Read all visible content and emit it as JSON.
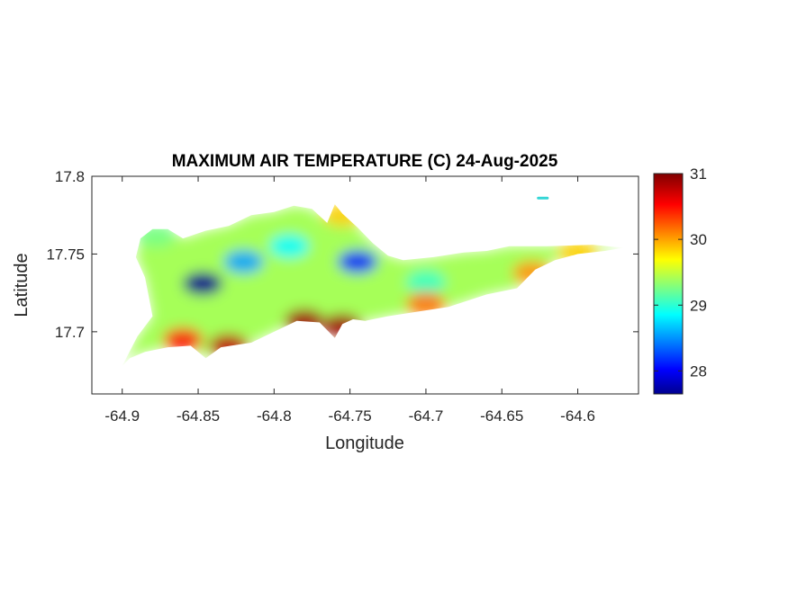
{
  "title": "MAXIMUM AIR TEMPERATURE (C) 24-Aug-2025",
  "xlabel": "Longitude",
  "ylabel": "Latitude",
  "x_ticks": [
    "-64.9",
    "-64.85",
    "-64.8",
    "-64.75",
    "-64.7",
    "-64.65",
    "-64.6"
  ],
  "y_ticks": [
    "17.8",
    "17.75",
    "17.7"
  ],
  "colorbar_ticks": [
    "31",
    "30",
    "29",
    "28"
  ],
  "chart_data": {
    "type": "heatmap",
    "title": "MAXIMUM AIR TEMPERATURE (C) 24-Aug-2025",
    "xlabel": "Longitude",
    "ylabel": "Latitude",
    "xlim": [
      -64.92,
      -64.56
    ],
    "ylim": [
      17.66,
      17.8
    ],
    "x_tick_values": [
      -64.9,
      -64.85,
      -64.8,
      -64.75,
      -64.7,
      -64.65,
      -64.6
    ],
    "y_tick_values": [
      17.8,
      17.75,
      17.7
    ],
    "colorbar": {
      "colormap": "jet",
      "range": [
        27.65,
        31
      ],
      "ticks": [
        28,
        29,
        30,
        31
      ]
    },
    "island_outline": [
      [
        -64.9,
        17.678
      ],
      [
        -64.895,
        17.683
      ],
      [
        -64.885,
        17.687
      ],
      [
        -64.87,
        17.69
      ],
      [
        -64.855,
        17.691
      ],
      [
        -64.845,
        17.683
      ],
      [
        -64.835,
        17.69
      ],
      [
        -64.815,
        17.693
      ],
      [
        -64.8,
        17.7
      ],
      [
        -64.785,
        17.707
      ],
      [
        -64.77,
        17.706
      ],
      [
        -64.76,
        17.696
      ],
      [
        -64.755,
        17.705
      ],
      [
        -64.748,
        17.708
      ],
      [
        -64.74,
        17.707
      ],
      [
        -64.725,
        17.71
      ],
      [
        -64.705,
        17.713
      ],
      [
        -64.685,
        17.716
      ],
      [
        -64.66,
        17.724
      ],
      [
        -64.64,
        17.728
      ],
      [
        -64.628,
        17.74
      ],
      [
        -64.615,
        17.746
      ],
      [
        -64.6,
        17.75
      ],
      [
        -64.582,
        17.752
      ],
      [
        -64.57,
        17.754
      ],
      [
        -64.59,
        17.756
      ],
      [
        -64.62,
        17.755
      ],
      [
        -64.645,
        17.755
      ],
      [
        -64.66,
        17.752
      ],
      [
        -64.675,
        17.751
      ],
      [
        -64.695,
        17.748
      ],
      [
        -64.715,
        17.746
      ],
      [
        -64.725,
        17.749
      ],
      [
        -64.735,
        17.757
      ],
      [
        -64.745,
        17.767
      ],
      [
        -64.755,
        17.776
      ],
      [
        -64.76,
        17.782
      ],
      [
        -64.765,
        17.77
      ],
      [
        -64.775,
        17.779
      ],
      [
        -64.787,
        17.781
      ],
      [
        -64.8,
        17.777
      ],
      [
        -64.815,
        17.775
      ],
      [
        -64.83,
        17.768
      ],
      [
        -64.845,
        17.765
      ],
      [
        -64.86,
        17.76
      ],
      [
        -64.87,
        17.766
      ],
      [
        -64.88,
        17.766
      ],
      [
        -64.888,
        17.76
      ],
      [
        -64.891,
        17.748
      ],
      [
        -64.885,
        17.735
      ],
      [
        -64.88,
        17.71
      ],
      [
        -64.89,
        17.697
      ]
    ],
    "islet": {
      "x": [
        -64.626,
        -64.62
      ],
      "y": 17.786
    },
    "temperature_features": [
      {
        "x": -64.847,
        "y": 17.731,
        "temp": 27.7
      },
      {
        "x": -64.82,
        "y": 17.745,
        "temp": 28.6
      },
      {
        "x": -64.745,
        "y": 17.745,
        "temp": 28.2
      },
      {
        "x": -64.79,
        "y": 17.755,
        "temp": 28.9
      },
      {
        "x": -64.7,
        "y": 17.732,
        "temp": 29.1
      },
      {
        "x": -64.86,
        "y": 17.695,
        "temp": 30.5
      },
      {
        "x": -64.83,
        "y": 17.691,
        "temp": 30.8
      },
      {
        "x": -64.78,
        "y": 17.707,
        "temp": 30.9
      },
      {
        "x": -64.755,
        "y": 17.704,
        "temp": 30.9
      },
      {
        "x": -64.7,
        "y": 17.718,
        "temp": 30.2
      },
      {
        "x": -64.63,
        "y": 17.738,
        "temp": 30.1
      },
      {
        "x": -64.6,
        "y": 17.751,
        "temp": 29.9
      },
      {
        "x": -64.755,
        "y": 17.775,
        "temp": 29.9
      },
      {
        "x": -64.878,
        "y": 17.762,
        "temp": 29.3
      }
    ]
  }
}
